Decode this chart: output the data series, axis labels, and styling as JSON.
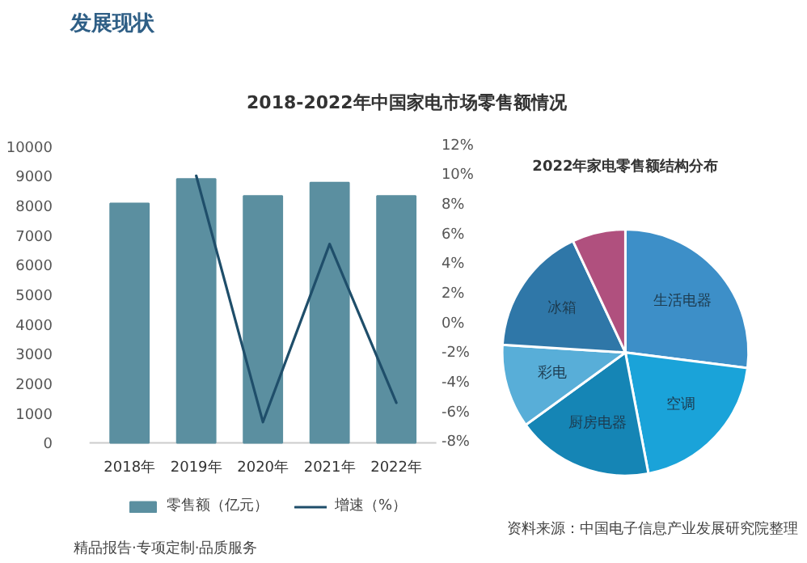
{
  "chart_data": [
    {
      "type": "bar",
      "title": "2018-2022年中国家电市场零售额情况",
      "categories": [
        "2018年",
        "2019年",
        "2020年",
        "2021年",
        "2022年"
      ],
      "series": [
        {
          "name": "零售额（亿元）",
          "type": "bar",
          "color": "#5b8fa0",
          "values": [
            8070,
            8890,
            8320,
            8770,
            8320
          ]
        },
        {
          "name": "增速（%）",
          "type": "line",
          "axis": "y2",
          "color": "#1f4e6a",
          "values": [
            null,
            10.0,
            -6.6,
            5.4,
            -5.3
          ]
        }
      ],
      "ylim": [
        0,
        10000
      ],
      "yticks": [
        0,
        1000,
        2000,
        3000,
        4000,
        5000,
        6000,
        7000,
        8000,
        9000,
        10000
      ],
      "y2lim": [
        -8,
        12
      ],
      "y2ticks": [
        {
          "value": -8,
          "label": "-8%"
        },
        {
          "value": -6,
          "label": "-6%"
        },
        {
          "value": -4,
          "label": "-4%"
        },
        {
          "value": -2,
          "label": "-2%"
        },
        {
          "value": 0,
          "label": "0%"
        },
        {
          "value": 2,
          "label": "2%"
        },
        {
          "value": 4,
          "label": "4%"
        },
        {
          "value": 6,
          "label": "6%"
        },
        {
          "value": 8,
          "label": "8%"
        },
        {
          "value": 10,
          "label": "10%"
        },
        {
          "value": 12,
          "label": "12%"
        }
      ],
      "legend": "bottom",
      "annotations": [
        "发展现状",
        "资料来源：中国电子信息产业发展研究院整理",
        "精品报告·专项定制·品质服务"
      ]
    },
    {
      "type": "pie",
      "title": "2022年家电零售额结构分布",
      "categories": [
        "生活电器",
        "空调",
        "厨房电器",
        "彩电",
        "冰箱",
        null
      ],
      "values": [
        27,
        20,
        18,
        11,
        17,
        7
      ],
      "colors": [
        "#3d8fc8",
        "#1aa3d9",
        "#1585b5",
        "#58aed8",
        "#2f77a8",
        "#b0507e"
      ]
    }
  ]
}
